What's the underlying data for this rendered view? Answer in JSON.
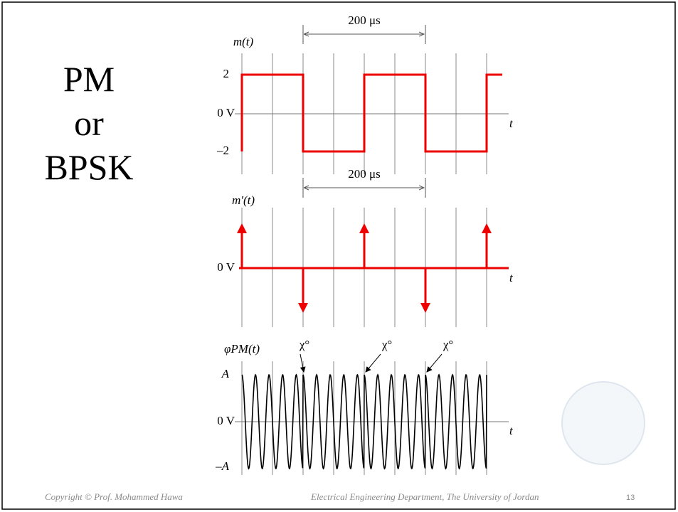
{
  "slide": {
    "title_lines": [
      "PM",
      "or",
      "BPSK"
    ],
    "message": {
      "label": "m(t)",
      "span": "200 μs",
      "high": "2",
      "zero": "0 V",
      "low": "–2",
      "axis": "t"
    },
    "derivative": {
      "label": "m′(t)",
      "span": "200 μs",
      "zero": "0 V",
      "axis": "t"
    },
    "pm_signal": {
      "label": "φPM(t)",
      "high": "A",
      "zero": "0 V",
      "low": "–A",
      "axis": "t",
      "jumps": [
        "χ°",
        "χ°",
        "χ°"
      ]
    },
    "footer": {
      "copyright": "Copyright © Prof. Mohammed Hawa",
      "department": "Electrical Engineering Department, The University of Jordan",
      "page": "13"
    }
  }
}
